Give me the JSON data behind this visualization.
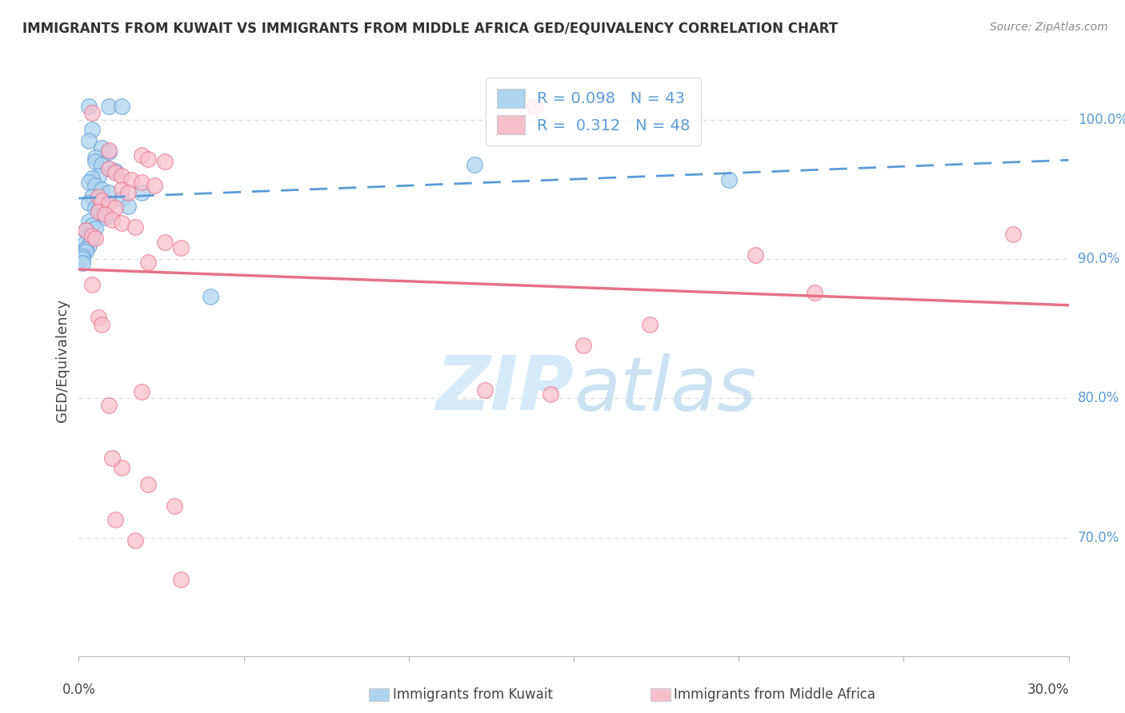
{
  "title": "IMMIGRANTS FROM KUWAIT VS IMMIGRANTS FROM MIDDLE AFRICA GED/EQUIVALENCY CORRELATION CHART",
  "source_text": "Source: ZipAtlas.com",
  "ylabel": "GED/Equivalency",
  "ylabel_right_labels": [
    "70.0%",
    "80.0%",
    "90.0%",
    "100.0%"
  ],
  "ylabel_right_values": [
    0.7,
    0.8,
    0.9,
    1.0
  ],
  "xlim": [
    0.0,
    0.3
  ],
  "ylim": [
    0.615,
    1.04
  ],
  "legend_R1": "0.098",
  "legend_N1": "43",
  "legend_R2": "0.312",
  "legend_N2": "48",
  "blue_color": "#aed4f0",
  "pink_color": "#f7bfcc",
  "blue_line_color": "#5b9bd5",
  "pink_line_color": "#e8708a",
  "blue_scatter": [
    [
      0.003,
      1.01
    ],
    [
      0.009,
      1.01
    ],
    [
      0.013,
      1.01
    ],
    [
      0.004,
      0.993
    ],
    [
      0.003,
      0.985
    ],
    [
      0.007,
      0.98
    ],
    [
      0.009,
      0.977
    ],
    [
      0.005,
      0.973
    ],
    [
      0.005,
      0.97
    ],
    [
      0.007,
      0.968
    ],
    [
      0.009,
      0.965
    ],
    [
      0.011,
      0.963
    ],
    [
      0.006,
      0.96
    ],
    [
      0.004,
      0.958
    ],
    [
      0.003,
      0.955
    ],
    [
      0.005,
      0.953
    ],
    [
      0.007,
      0.95
    ],
    [
      0.009,
      0.948
    ],
    [
      0.004,
      0.945
    ],
    [
      0.013,
      0.943
    ],
    [
      0.003,
      0.94
    ],
    [
      0.005,
      0.937
    ],
    [
      0.006,
      0.935
    ],
    [
      0.007,
      0.932
    ],
    [
      0.008,
      0.93
    ],
    [
      0.003,
      0.927
    ],
    [
      0.004,
      0.924
    ],
    [
      0.005,
      0.922
    ],
    [
      0.002,
      0.92
    ],
    [
      0.003,
      0.917
    ],
    [
      0.004,
      0.915
    ],
    [
      0.002,
      0.912
    ],
    [
      0.003,
      0.91
    ],
    [
      0.002,
      0.907
    ],
    [
      0.002,
      0.905
    ],
    [
      0.001,
      0.902
    ],
    [
      0.001,
      0.9
    ],
    [
      0.001,
      0.897
    ],
    [
      0.12,
      0.968
    ],
    [
      0.019,
      0.948
    ],
    [
      0.04,
      0.873
    ],
    [
      0.197,
      0.957
    ],
    [
      0.015,
      0.938
    ]
  ],
  "pink_scatter": [
    [
      0.004,
      1.005
    ],
    [
      0.138,
      1.01
    ],
    [
      0.009,
      0.978
    ],
    [
      0.019,
      0.975
    ],
    [
      0.021,
      0.972
    ],
    [
      0.026,
      0.97
    ],
    [
      0.009,
      0.965
    ],
    [
      0.011,
      0.962
    ],
    [
      0.013,
      0.96
    ],
    [
      0.016,
      0.957
    ],
    [
      0.019,
      0.955
    ],
    [
      0.023,
      0.953
    ],
    [
      0.013,
      0.95
    ],
    [
      0.015,
      0.948
    ],
    [
      0.006,
      0.945
    ],
    [
      0.007,
      0.942
    ],
    [
      0.009,
      0.94
    ],
    [
      0.011,
      0.937
    ],
    [
      0.006,
      0.934
    ],
    [
      0.008,
      0.932
    ],
    [
      0.01,
      0.928
    ],
    [
      0.013,
      0.926
    ],
    [
      0.017,
      0.923
    ],
    [
      0.002,
      0.921
    ],
    [
      0.004,
      0.917
    ],
    [
      0.005,
      0.915
    ],
    [
      0.026,
      0.912
    ],
    [
      0.031,
      0.908
    ],
    [
      0.021,
      0.898
    ],
    [
      0.004,
      0.882
    ],
    [
      0.006,
      0.858
    ],
    [
      0.007,
      0.853
    ],
    [
      0.009,
      0.795
    ],
    [
      0.019,
      0.805
    ],
    [
      0.013,
      0.75
    ],
    [
      0.021,
      0.738
    ],
    [
      0.029,
      0.723
    ],
    [
      0.011,
      0.713
    ],
    [
      0.017,
      0.698
    ],
    [
      0.031,
      0.67
    ],
    [
      0.01,
      0.757
    ],
    [
      0.143,
      0.803
    ],
    [
      0.123,
      0.806
    ],
    [
      0.153,
      0.838
    ],
    [
      0.173,
      0.853
    ],
    [
      0.223,
      0.876
    ],
    [
      0.283,
      0.918
    ],
    [
      0.205,
      0.903
    ]
  ],
  "background_color": "#ffffff",
  "grid_color": "#d8d8d8",
  "watermark_color": "#d6eaf8",
  "xtick_positions": [
    0.0,
    0.05,
    0.1,
    0.15,
    0.2,
    0.25,
    0.3
  ]
}
